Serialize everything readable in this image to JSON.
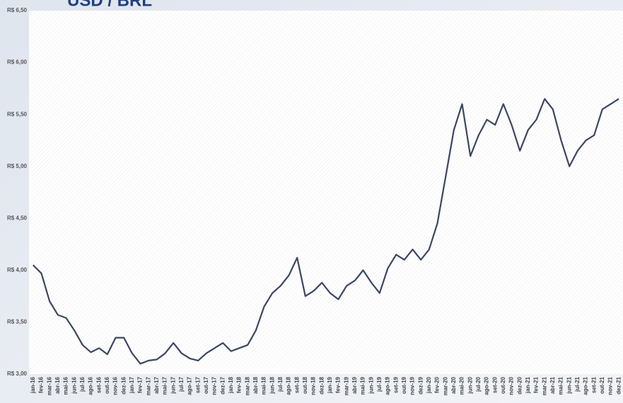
{
  "chart_data": {
    "type": "line",
    "title": "USD / BRL",
    "categories": [
      "jan-16",
      "fev-16",
      "mar-16",
      "abr-16",
      "mai-16",
      "jun-16",
      "jul-16",
      "ago-16",
      "set-16",
      "out-16",
      "nov-16",
      "dez-16",
      "jan-17",
      "fev-17",
      "mar-17",
      "abr-17",
      "mai-17",
      "jun-17",
      "jul-17",
      "ago-17",
      "set-17",
      "out-17",
      "nov-17",
      "dez-17",
      "jan-18",
      "fev-18",
      "mar-18",
      "abr-18",
      "mai-18",
      "jun-18",
      "jul-18",
      "ago-18",
      "set-18",
      "out-18",
      "nov-18",
      "dez-18",
      "jan-19",
      "fev-19",
      "mar-19",
      "abr-19",
      "mai-19",
      "jun-19",
      "jul-19",
      "ago-19",
      "set-19",
      "out-19",
      "nov-19",
      "dez-19",
      "jan-20",
      "fev-20",
      "mar-20",
      "abr-20",
      "mai-20",
      "jun-20",
      "jul-20",
      "ago-20",
      "set-20",
      "out-20",
      "nov-20",
      "dez-20",
      "jan-21",
      "fev-21",
      "mar-21",
      "abr-21",
      "mai-21",
      "jun-21",
      "jul-21",
      "ago-21",
      "set-21",
      "out-21",
      "nov-21",
      "dez-21"
    ],
    "series": [
      {
        "name": "USD/BRL",
        "color": "#3a4660",
        "values": [
          4.05,
          3.97,
          3.7,
          3.57,
          3.54,
          3.42,
          3.28,
          3.21,
          3.25,
          3.19,
          3.35,
          3.35,
          3.2,
          3.1,
          3.13,
          3.14,
          3.2,
          3.3,
          3.2,
          3.15,
          3.13,
          3.2,
          3.25,
          3.3,
          3.22,
          3.25,
          3.28,
          3.42,
          3.65,
          3.78,
          3.85,
          3.95,
          4.12,
          3.75,
          3.8,
          3.88,
          3.78,
          3.72,
          3.85,
          3.9,
          4.0,
          3.88,
          3.78,
          4.02,
          4.15,
          4.1,
          4.2,
          4.1,
          4.2,
          4.45,
          4.9,
          5.35,
          5.6,
          5.1,
          5.3,
          5.45,
          5.4,
          5.6,
          5.4,
          5.15,
          5.35,
          5.45,
          5.65,
          5.55,
          5.25,
          5.0,
          5.15,
          5.25,
          5.3,
          5.55,
          5.6,
          5.65
        ]
      }
    ],
    "ylim": [
      3,
      6.5
    ],
    "yticks": [
      {
        "value": 3,
        "label": "R$ 3,00"
      },
      {
        "value": 3.5,
        "label": "R$ 3,50"
      },
      {
        "value": 4,
        "label": "R$ 4,00"
      },
      {
        "value": 4.5,
        "label": "R$ 4,50"
      },
      {
        "value": 5,
        "label": "R$ 5,00"
      },
      {
        "value": 5.5,
        "label": "R$ 5,50"
      },
      {
        "value": 6,
        "label": "R$ 6,00"
      },
      {
        "value": 6.5,
        "label": "R$ 6,50"
      }
    ],
    "grid": false
  }
}
